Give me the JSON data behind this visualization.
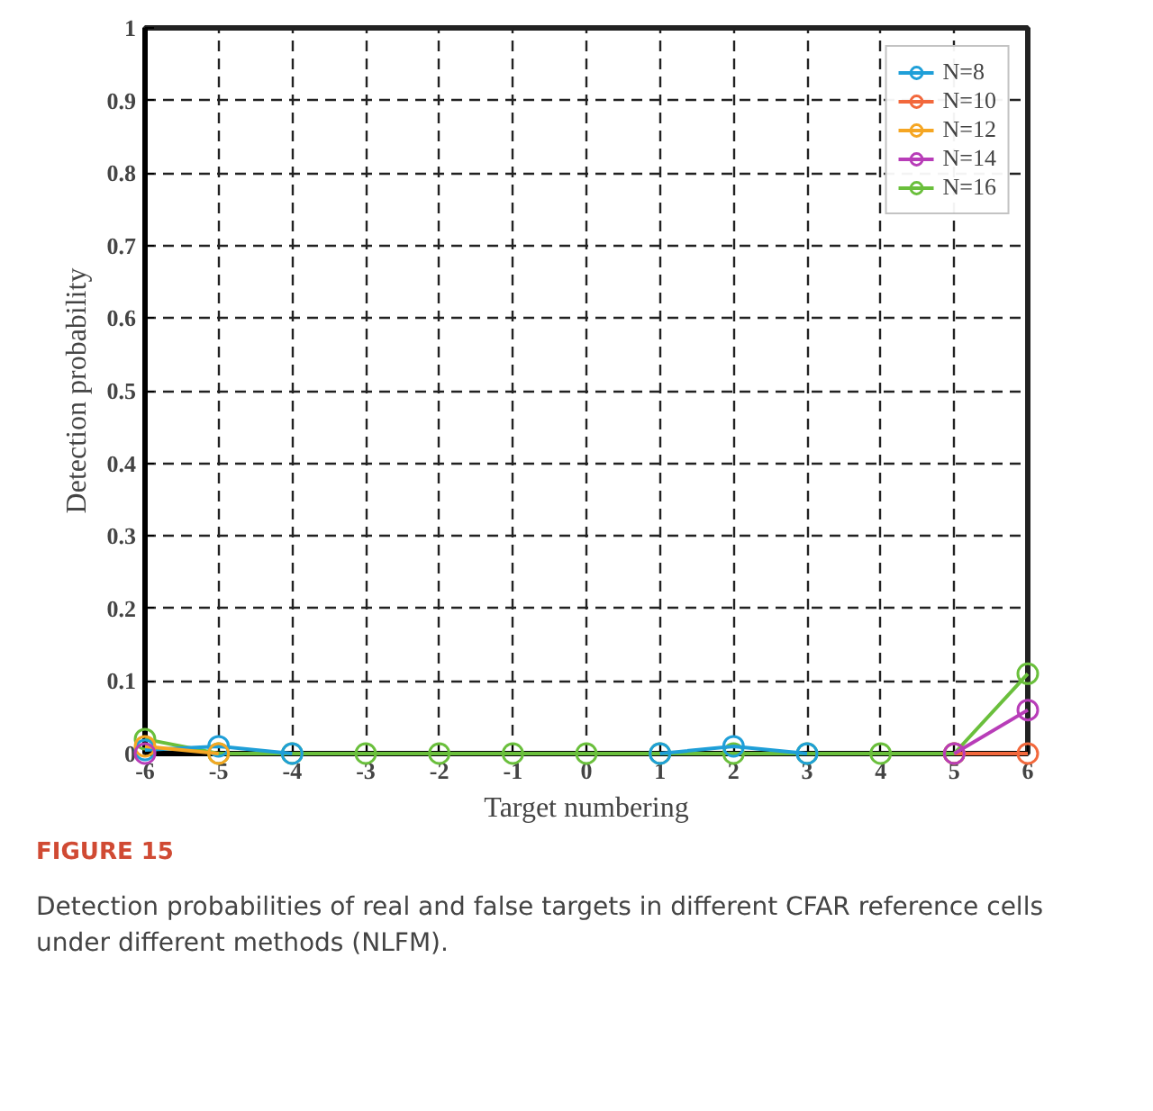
{
  "chart_data": {
    "type": "line",
    "xlabel": "Target numbering",
    "ylabel": "Detection probability",
    "x": [
      -6,
      -5,
      -4,
      -3,
      -2,
      -1,
      0,
      1,
      2,
      3,
      4,
      5,
      6
    ],
    "series": [
      {
        "name": "N=8",
        "color": "#1f9fd8",
        "values": [
          0.005,
          0.01,
          0,
          null,
          null,
          null,
          null,
          0,
          0.01,
          0,
          null,
          null,
          null
        ]
      },
      {
        "name": "N=10",
        "color": "#f2683c",
        "values": [
          null,
          null,
          null,
          null,
          null,
          null,
          null,
          null,
          null,
          null,
          null,
          0,
          0
        ]
      },
      {
        "name": "N=12",
        "color": "#f5a623",
        "values": [
          0.01,
          0,
          null,
          null,
          null,
          null,
          null,
          null,
          null,
          null,
          null,
          null,
          null
        ]
      },
      {
        "name": "N=14",
        "color": "#b83db8",
        "values": [
          0,
          null,
          null,
          null,
          null,
          null,
          null,
          null,
          null,
          null,
          null,
          0,
          0.06
        ]
      },
      {
        "name": "N=16",
        "color": "#6abf3c",
        "values": [
          0.02,
          0,
          0,
          0,
          0,
          0,
          0,
          0,
          0,
          0,
          0,
          0,
          0.11
        ]
      }
    ],
    "xlim": [
      -6,
      6
    ],
    "xticks": [
      -6,
      -5,
      -4,
      -3,
      -2,
      -1,
      0,
      1,
      2,
      3,
      4,
      5,
      6
    ],
    "ylim": [
      0,
      1
    ],
    "yticks": [
      0,
      0.1,
      0.2,
      0.3,
      0.4,
      0.5,
      0.6,
      0.7,
      0.8,
      0.9,
      1.0
    ],
    "grid": true,
    "legend": "top right",
    "marker": "circle",
    "line_style": "solid",
    "annotations": [
      "FIGURE 15",
      "Detection probabilities of real and false targets in different CFAR reference cells under different methods (NLFM)."
    ]
  }
}
